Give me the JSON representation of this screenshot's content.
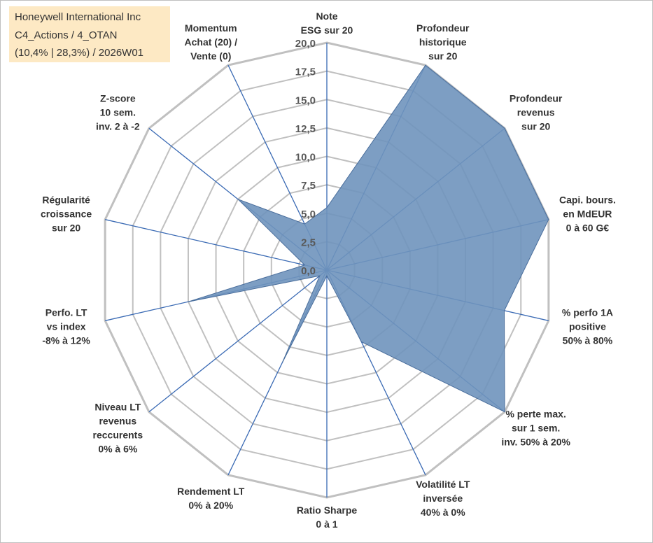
{
  "title_box": {
    "line1": "Honeywell International Inc",
    "line2": "C4_Actions / 4_OTAN",
    "line3": "(10,4% | 28,3%) / 2026W01"
  },
  "chart_data": {
    "type": "radar",
    "rmin": 0,
    "rmax": 20,
    "tick_step": 2.5,
    "ticks": [
      "0,0",
      "2,5",
      "5,0",
      "7,5",
      "10,0",
      "12,5",
      "15,0",
      "17,5",
      "20,0"
    ],
    "axes": [
      [
        "Note",
        "ESG sur 20"
      ],
      [
        "Profondeur",
        "historique",
        "sur 20"
      ],
      [
        "Profondeur",
        "revenus",
        "sur 20"
      ],
      [
        "Capi. bours.",
        "en MdEUR",
        "0 à 60 G€"
      ],
      [
        "% perfo 1A",
        "positive",
        "50% à 80%"
      ],
      [
        "% perte max.",
        "sur 1 sem.",
        "inv. 50% à 20%"
      ],
      [
        "Volatilité LT",
        "inversée",
        "40% à 0%"
      ],
      [
        "Ratio Sharpe",
        "0 à 1"
      ],
      [
        "Rendement LT",
        "0% à 20%"
      ],
      [
        "Niveau LT",
        "revenus",
        "reccurents",
        "0% à 6%"
      ],
      [
        "Perfo. LT",
        "vs index",
        "-8% à 12%"
      ],
      [
        "Régularité",
        "croissance",
        "sur 20"
      ],
      [
        "Z-score",
        "10 sem.",
        "inv. 2 à -2"
      ],
      [
        "Momentum",
        "Achat (20) /",
        "Vente (0)"
      ]
    ],
    "series": [
      {
        "name": "Honeywell International Inc",
        "values": [
          5.5,
          20,
          20,
          20,
          16,
          20,
          7,
          0.5,
          9,
          0.8,
          12.5,
          2,
          10,
          4.5
        ],
        "fill": "#6f93bd",
        "stroke": "#4a6e9c"
      }
    ],
    "grid_color": "#c0c0c0",
    "spoke_color": "#3a6ab4"
  }
}
